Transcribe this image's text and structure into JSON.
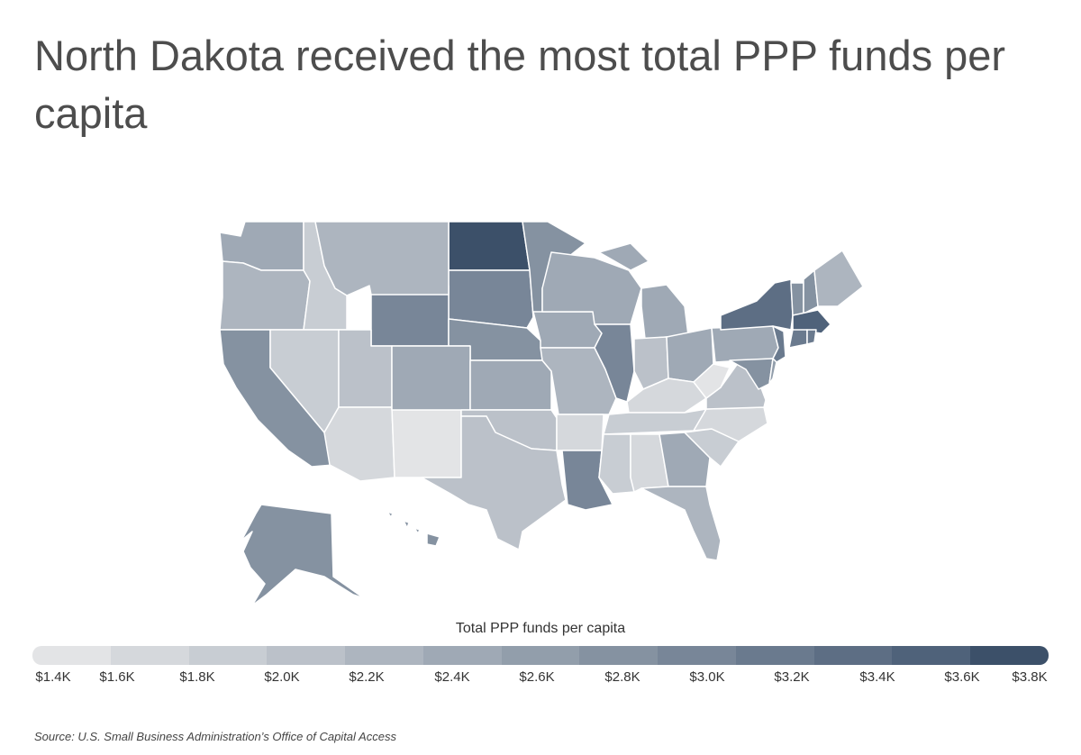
{
  "title": "North Dakota received the most total PPP funds per capita",
  "legend": {
    "title": "Total PPP funds per capita",
    "ticks": [
      "$1.4K",
      "$1.6K",
      "$1.8K",
      "$2.0K",
      "$2.2K",
      "$2.4K",
      "$2.6K",
      "$2.8K",
      "$3.0K",
      "$3.2K",
      "$3.4K",
      "$3.6K",
      "$3.8K"
    ],
    "colors": [
      "#e3e4e6",
      "#d5d8dc",
      "#c8cdd3",
      "#bbc1c9",
      "#adb5bf",
      "#9fa9b5",
      "#929eab",
      "#8592a1",
      "#788698",
      "#6a7a8e",
      "#5d6e84",
      "#4f627a",
      "#3c5069"
    ]
  },
  "source": "Source: U.S. Small Business Administration’s Office of Capital Access",
  "chart_data": {
    "type": "choropleth",
    "value_unit": "$K per capita",
    "scale": [
      1.4,
      3.8
    ],
    "states": [
      {
        "state": "ND",
        "value": 3.75
      },
      {
        "state": "SD",
        "value": 3.0
      },
      {
        "state": "WY",
        "value": 2.95
      },
      {
        "state": "MN",
        "value": 2.8
      },
      {
        "state": "NE",
        "value": 2.75
      },
      {
        "state": "WA",
        "value": 2.35
      },
      {
        "state": "OR",
        "value": 2.3
      },
      {
        "state": "ID",
        "value": 1.8
      },
      {
        "state": "MT",
        "value": 2.3
      },
      {
        "state": "CA",
        "value": 2.8
      },
      {
        "state": "NV",
        "value": 1.9
      },
      {
        "state": "UT",
        "value": 2.0
      },
      {
        "state": "AZ",
        "value": 1.6
      },
      {
        "state": "NM",
        "value": 1.45
      },
      {
        "state": "CO",
        "value": 2.45
      },
      {
        "state": "KS",
        "value": 2.45
      },
      {
        "state": "OK",
        "value": 2.1
      },
      {
        "state": "TX",
        "value": 2.05
      },
      {
        "state": "IA",
        "value": 2.5
      },
      {
        "state": "MO",
        "value": 2.3
      },
      {
        "state": "AR",
        "value": 1.65
      },
      {
        "state": "LA",
        "value": 2.9
      },
      {
        "state": "WI",
        "value": 2.45
      },
      {
        "state": "IL",
        "value": 3.05
      },
      {
        "state": "MI",
        "value": 2.5
      },
      {
        "state": "IN",
        "value": 2.05
      },
      {
        "state": "OH",
        "value": 2.35
      },
      {
        "state": "KY",
        "value": 1.75
      },
      {
        "state": "TN",
        "value": 1.95
      },
      {
        "state": "MS",
        "value": 1.85
      },
      {
        "state": "AL",
        "value": 1.75
      },
      {
        "state": "GA",
        "value": 2.45
      },
      {
        "state": "FL",
        "value": 2.25
      },
      {
        "state": "SC",
        "value": 1.8
      },
      {
        "state": "NC",
        "value": 1.75
      },
      {
        "state": "VA",
        "value": 2.1
      },
      {
        "state": "WV",
        "value": 1.5
      },
      {
        "state": "PA",
        "value": 2.45
      },
      {
        "state": "NY",
        "value": 3.35
      },
      {
        "state": "VT",
        "value": 2.75
      },
      {
        "state": "NH",
        "value": 2.75
      },
      {
        "state": "ME",
        "value": 2.25
      },
      {
        "state": "MA",
        "value": 3.45
      },
      {
        "state": "CT",
        "value": 3.1
      },
      {
        "state": "RI",
        "value": 3.1
      },
      {
        "state": "NJ",
        "value": 3.15
      },
      {
        "state": "MD",
        "value": 2.85
      },
      {
        "state": "DE",
        "value": 2.6
      },
      {
        "state": "AK",
        "value": 2.75
      },
      {
        "state": "HI",
        "value": 2.85
      }
    ]
  }
}
